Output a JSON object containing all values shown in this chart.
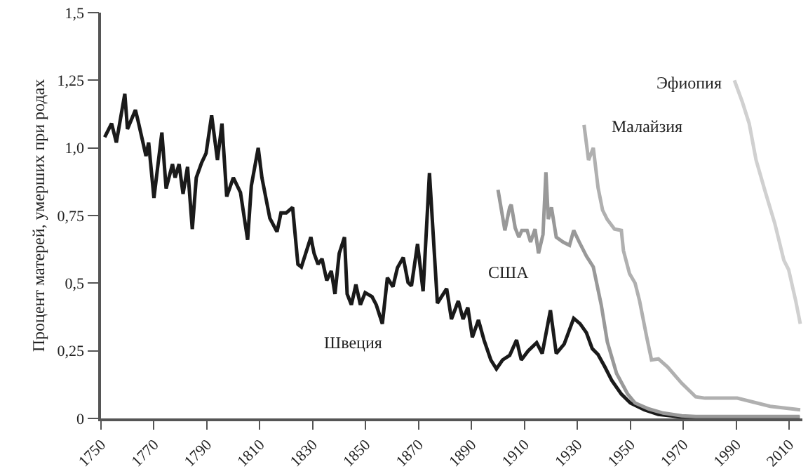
{
  "chart_data": {
    "type": "line",
    "ylabel": "Процент матерей, умерших при родах",
    "xlim": [
      1750,
      2015
    ],
    "ylim": [
      0,
      1.5
    ],
    "xticks": [
      1750,
      1770,
      1790,
      1810,
      1830,
      1850,
      1870,
      1890,
      1910,
      1930,
      1950,
      1970,
      1990,
      2010
    ],
    "yticks": [
      0,
      {
        "value": 0.25,
        "label": "0,25"
      },
      {
        "value": 0.5,
        "label": "0,5"
      },
      {
        "value": 0.75,
        "label": "0,75"
      },
      {
        "value": 1,
        "label": "1,0"
      },
      {
        "value": 1.25,
        "label": "1,25"
      },
      {
        "value": 1.5,
        "label": "1,5"
      }
    ],
    "legend": false,
    "marker": "none",
    "line_style": "solid",
    "series": [
      {
        "name": "Швеция",
        "color": "#1a1a1a",
        "x": [
          1751.4,
          1754,
          1755.8,
          1759,
          1760,
          1763,
          1764,
          1767,
          1768,
          1770,
          1773,
          1774.6,
          1777,
          1778,
          1779.5,
          1781,
          1782.7,
          1784.5,
          1786,
          1788,
          1789.7,
          1791.8,
          1794,
          1795.7,
          1797.5,
          1800,
          1802.7,
          1805.4,
          1806.8,
          1809.4,
          1810.8,
          1813.8,
          1816.5,
          1818,
          1820,
          1822.4,
          1824.4,
          1825.7,
          1829.3,
          1830.5,
          1832,
          1833.5,
          1835.3,
          1837,
          1838.4,
          1840,
          1842,
          1843,
          1844.6,
          1846.3,
          1848,
          1849.8,
          1852.4,
          1854,
          1856.3,
          1858.2,
          1860.3,
          1862,
          1864.2,
          1866,
          1867.3,
          1869.6,
          1871.7,
          1874.1,
          1877.1,
          1880.6,
          1882.4,
          1885,
          1886.8,
          1888.6,
          1890.3,
          1892.6,
          1894.7,
          1897.3,
          1899.4,
          1901.7,
          1904.4,
          1907,
          1908.8,
          1911.4,
          1914.6,
          1916.7,
          1919.8,
          1922,
          1925,
          1928.6,
          1931,
          1933.4,
          1935.6,
          1937.8,
          1940.4,
          1943,
          1946.6,
          1950,
          1955.3,
          1960.6,
          1967.7,
          1974.7,
          2014
        ],
        "values": [
          1.04,
          1.09,
          1.02,
          1.2,
          1.07,
          1.14,
          1.1,
          0.97,
          1.02,
          0.815,
          1.057,
          0.85,
          0.94,
          0.89,
          0.94,
          0.83,
          0.93,
          0.7,
          0.89,
          0.945,
          0.98,
          1.12,
          0.955,
          1.09,
          0.82,
          0.89,
          0.835,
          0.66,
          0.86,
          1.0,
          0.89,
          0.74,
          0.69,
          0.76,
          0.76,
          0.78,
          0.57,
          0.56,
          0.67,
          0.61,
          0.57,
          0.59,
          0.51,
          0.545,
          0.46,
          0.61,
          0.67,
          0.46,
          0.42,
          0.495,
          0.42,
          0.465,
          0.45,
          0.42,
          0.35,
          0.52,
          0.487,
          0.557,
          0.595,
          0.503,
          0.49,
          0.645,
          0.47,
          0.907,
          0.426,
          0.48,
          0.367,
          0.434,
          0.367,
          0.41,
          0.3,
          0.364,
          0.29,
          0.216,
          0.183,
          0.216,
          0.233,
          0.29,
          0.216,
          0.25,
          0.28,
          0.24,
          0.4,
          0.24,
          0.275,
          0.37,
          0.35,
          0.317,
          0.258,
          0.236,
          0.19,
          0.14,
          0.09,
          0.057,
          0.032,
          0.015,
          0.007,
          0.003,
          0.003
        ]
      },
      {
        "name": "США",
        "color": "#999999",
        "x": [
          1900,
          1902.6,
          1904.4,
          1905,
          1906.5,
          1907.9,
          1909,
          1911,
          1912.3,
          1914,
          1915.3,
          1917,
          1918.1,
          1919,
          1920.2,
          1922,
          1924.6,
          1927,
          1928.6,
          1930.7,
          1933.4,
          1936,
          1939,
          1941.3,
          1944.8,
          1949,
          1951.8,
          1957,
          1962.4,
          1969.4,
          1974.7,
          2014
        ],
        "values": [
          0.845,
          0.695,
          0.78,
          0.79,
          0.704,
          0.67,
          0.695,
          0.695,
          0.652,
          0.7,
          0.61,
          0.68,
          0.91,
          0.737,
          0.78,
          0.67,
          0.652,
          0.64,
          0.695,
          0.652,
          0.6,
          0.56,
          0.42,
          0.283,
          0.166,
          0.09,
          0.057,
          0.035,
          0.02,
          0.01,
          0.007,
          0.007
        ]
      },
      {
        "name": "Малайзия",
        "color": "#b0b0b0",
        "x": [
          1932.5,
          1934.2,
          1936,
          1937.8,
          1939.5,
          1941.3,
          1944,
          1946.6,
          1947.4,
          1949.7,
          1951.8,
          1953.5,
          1956.2,
          1958,
          1960.6,
          1964.1,
          1969.4,
          1974.7,
          1978.2,
          1990.4,
          2002.8,
          2014.2
        ],
        "values": [
          1.085,
          0.955,
          1.0,
          0.853,
          0.77,
          0.735,
          0.7,
          0.695,
          0.62,
          0.535,
          0.5,
          0.434,
          0.3,
          0.216,
          0.22,
          0.19,
          0.13,
          0.08,
          0.075,
          0.075,
          0.045,
          0.032
        ]
      },
      {
        "name": "Эфиопия",
        "color": "#d0d0d0",
        "x": [
          1989.3,
          1992.3,
          1994.9,
          1997.5,
          2001,
          2004.6,
          2008,
          2009.8,
          2012.5,
          2014.2
        ],
        "values": [
          1.25,
          1.17,
          1.09,
          0.955,
          0.837,
          0.72,
          0.585,
          0.55,
          0.434,
          0.35
        ]
      }
    ]
  }
}
